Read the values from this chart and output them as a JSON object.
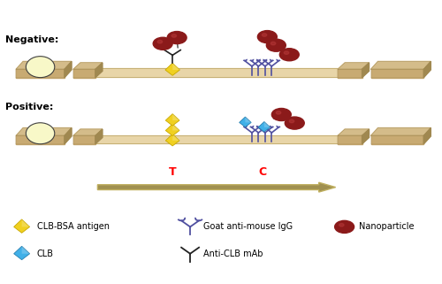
{
  "fig_width": 5.0,
  "fig_height": 3.21,
  "dpi": 100,
  "bg_color": "#ffffff",
  "strip_top_color": "#d4bc8a",
  "strip_face_color": "#c8aa72",
  "strip_light_color": "#e8d5a8",
  "strip_shadow_color": "#a08850",
  "strip_flat_color": "#dfc898",
  "nanoparticle_color": "#8b1a1a",
  "nano_highlight": "#c04040",
  "clb_bsa_color": "#f0d020",
  "clb_bsa_dark": "#c8a800",
  "clb_color": "#40b0e8",
  "clb_dark": "#2880b0",
  "antibody_color": "#5050a0",
  "antibody_dark": "#303080",
  "black_ab_color": "#222222",
  "title_neg": "Negative:",
  "title_pos": "Positive:",
  "label_T": "T",
  "label_C": "C",
  "arrow_color": "#a09050",
  "arrow_color2": "#c0b060"
}
